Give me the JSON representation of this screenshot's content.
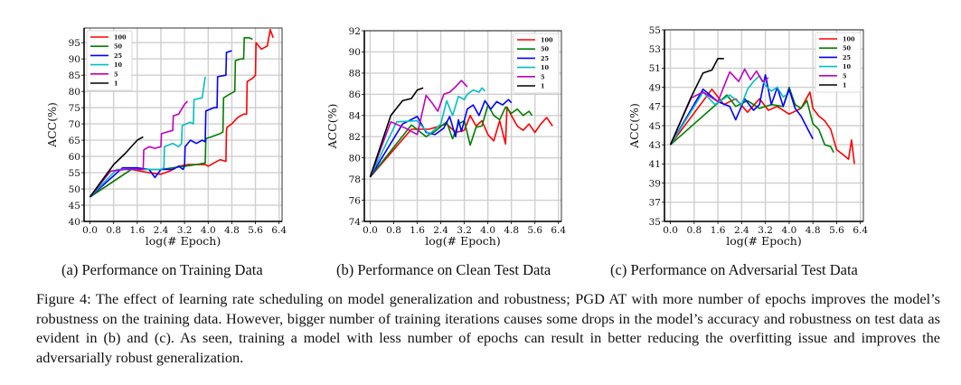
{
  "figure": {
    "subcaptions": [
      "(a) Performance on Training Data",
      "(b) Performance on Clean Test Data",
      "(c) Performance on Adversarial Test Data"
    ],
    "caption": "Figure 4: The effect of learning rate scheduling on model generalization and robustness; PGD AT with more number of epochs improves the model’s robustness on the training data. However, bigger number of training iterations causes some drops in the model’s accuracy and robustness on test data as evident in (b) and (c). As seen, training a model with less number of epochs can result in better reducing the overfitting issue and improves the adversarially robust generalization."
  },
  "series_colors": {
    "100": "#ff0000",
    "50": "#008000",
    "25": "#0000ff",
    "10": "#00bfbf",
    "5": "#bf00bf",
    "1": "#000000"
  },
  "chart_data": [
    {
      "type": "line",
      "id": "a",
      "title": "",
      "xlabel": "log(# Epoch)",
      "ylabel": "ACC(%)",
      "xlim": [
        -0.2,
        6.5
      ],
      "ylim": [
        40,
        99.5
      ],
      "xticks": [
        "0.0",
        "0.8",
        "1.6",
        "2.4",
        "3.2",
        "4.0",
        "4.8",
        "5.6",
        "6.4"
      ],
      "xtick_values": [
        0.0,
        0.8,
        1.6,
        2.4,
        3.2,
        4.0,
        4.8,
        5.6,
        6.4
      ],
      "yticks": [
        "40",
        "45",
        "50",
        "55",
        "60",
        "65",
        "70",
        "75",
        "80",
        "85",
        "90",
        "95"
      ],
      "ytick_values": [
        40,
        45,
        50,
        55,
        60,
        65,
        70,
        75,
        80,
        85,
        90,
        95
      ],
      "grid": true,
      "legend_position": "top-left",
      "series": [
        {
          "name": "100",
          "x": [
            0,
            1.4,
            2.0,
            2.4,
            2.7,
            3.0,
            3.3,
            3.6,
            3.9,
            4.0,
            4.2,
            4.4,
            4.6,
            4.62,
            4.64,
            4.8,
            5.0,
            5.2,
            5.3,
            5.32,
            5.5,
            5.6,
            5.62,
            5.8,
            6.0,
            6.1,
            6.2
          ],
          "y": [
            47.5,
            56,
            55,
            54.5,
            55.5,
            57,
            57.5,
            57.5,
            57.5,
            57,
            58,
            59,
            58.5,
            68,
            69,
            70,
            72,
            73,
            73,
            83,
            84,
            85,
            95,
            93,
            94,
            99,
            96.5
          ]
        },
        {
          "name": "50",
          "x": [
            0,
            1.4,
            2.0,
            2.4,
            2.8,
            3.2,
            3.6,
            3.9,
            3.92,
            4.1,
            4.4,
            4.5,
            4.52,
            4.7,
            4.9,
            4.92,
            5.1,
            5.2,
            5.22,
            5.4,
            5.5
          ],
          "y": [
            47.5,
            56,
            56,
            56,
            56.5,
            57,
            57.5,
            58,
            65.5,
            66,
            67,
            67.5,
            78,
            79,
            80,
            89.5,
            90,
            90,
            96.5,
            96.5,
            96
          ]
        },
        {
          "name": "25",
          "x": [
            0,
            1.1,
            1.6,
            2.0,
            2.2,
            2.4,
            2.8,
            3.0,
            3.15,
            3.2,
            3.22,
            3.4,
            3.6,
            3.8,
            3.9,
            3.92,
            4.2,
            4.3,
            4.32,
            4.6,
            4.62,
            4.8
          ],
          "y": [
            47.5,
            56.5,
            56.5,
            56,
            53.5,
            56,
            56,
            57,
            56,
            57,
            63,
            65,
            64,
            65,
            64.5,
            74,
            75,
            75,
            84.5,
            85,
            92,
            92.5
          ]
        },
        {
          "name": "10",
          "x": [
            0,
            0.9,
            1.6,
            2.0,
            2.4,
            2.5,
            2.52,
            2.8,
            3.0,
            3.1,
            3.12,
            3.4,
            3.5,
            3.52,
            3.8,
            3.9
          ],
          "y": [
            47.5,
            56,
            56,
            56,
            56,
            56.5,
            63,
            64,
            63,
            64,
            69.5,
            70.5,
            70,
            77.5,
            78,
            84.5
          ]
        },
        {
          "name": "5",
          "x": [
            0,
            0.7,
            1.2,
            1.6,
            1.8,
            1.82,
            2.0,
            2.2,
            2.4,
            2.42,
            2.6,
            2.8,
            2.82,
            3.0,
            3.2,
            3.3
          ],
          "y": [
            47.5,
            55.5,
            56,
            56,
            56,
            62,
            63,
            62.5,
            63,
            67,
            67.5,
            68,
            72.5,
            73,
            76,
            77
          ]
        },
        {
          "name": "1",
          "x": [
            0,
            0.4,
            0.8,
            1.2,
            1.6,
            1.8
          ],
          "y": [
            47.5,
            52.5,
            57.5,
            61,
            65,
            66
          ]
        }
      ]
    },
    {
      "type": "line",
      "id": "b",
      "title": "",
      "xlabel": "log(# Epoch)",
      "ylabel": "ACC(%)",
      "xlim": [
        -0.2,
        6.5
      ],
      "ylim": [
        74,
        92
      ],
      "xticks": [
        "0.0",
        "0.8",
        "1.6",
        "2.4",
        "3.2",
        "4.0",
        "4.8",
        "5.6",
        "6.4"
      ],
      "xtick_values": [
        0.0,
        0.8,
        1.6,
        2.4,
        3.2,
        4.0,
        4.8,
        5.6,
        6.4
      ],
      "yticks": [
        "74",
        "76",
        "78",
        "80",
        "82",
        "84",
        "86",
        "88",
        "90",
        "92"
      ],
      "ytick_values": [
        74,
        76,
        78,
        80,
        82,
        84,
        86,
        88,
        90,
        92
      ],
      "grid": true,
      "legend_position": "top-right",
      "series": [
        {
          "name": "100",
          "x": [
            0,
            1.4,
            2.0,
            2.6,
            2.9,
            3.2,
            3.4,
            3.6,
            3.8,
            4.0,
            4.2,
            4.4,
            4.6,
            4.65,
            4.8,
            5.0,
            5.2,
            5.4,
            5.6,
            5.8,
            6.0,
            6.2
          ],
          "y": [
            78.2,
            82.7,
            82.7,
            83.2,
            82.4,
            82.6,
            84,
            83,
            83.5,
            82.2,
            81.6,
            83.5,
            81.3,
            84.8,
            84,
            83,
            82.6,
            83.2,
            82.4,
            83.2,
            83.8,
            83
          ]
        },
        {
          "name": "50",
          "x": [
            0,
            1.4,
            1.9,
            2.2,
            2.6,
            2.8,
            3.0,
            3.2,
            3.4,
            3.6,
            3.8,
            4.0,
            4.2,
            4.4,
            4.6,
            4.8,
            5.0,
            5.2,
            5.4,
            5.5
          ],
          "y": [
            78.2,
            83.1,
            82,
            82.5,
            83.4,
            81.8,
            83.2,
            83.5,
            81.2,
            82.9,
            83,
            85,
            84,
            83.6,
            84.8,
            84.2,
            84.6,
            84,
            84.4,
            84
          ]
        },
        {
          "name": "25",
          "x": [
            0,
            1.1,
            1.6,
            1.9,
            2.2,
            2.5,
            2.7,
            2.9,
            3.0,
            3.1,
            3.3,
            3.5,
            3.7,
            3.9,
            4.1,
            4.3,
            4.5,
            4.7,
            4.8
          ],
          "y": [
            78.2,
            83.2,
            83.9,
            82.4,
            82.2,
            82.8,
            83.9,
            82,
            83.6,
            82.5,
            84.6,
            85,
            84,
            85.4,
            84.6,
            85.3,
            85,
            85.5,
            85.2
          ]
        },
        {
          "name": "10",
          "x": [
            0,
            0.9,
            1.6,
            2.0,
            2.4,
            2.6,
            2.8,
            3.0,
            3.2,
            3.3,
            3.5,
            3.7,
            3.8,
            3.9
          ],
          "y": [
            78.2,
            83.4,
            83.5,
            82.2,
            83.2,
            85.4,
            84,
            85.8,
            85.5,
            86,
            86.4,
            86.2,
            86.6,
            86.3
          ]
        },
        {
          "name": "5",
          "x": [
            0,
            0.7,
            1.2,
            1.6,
            1.9,
            2.1,
            2.3,
            2.5,
            2.7,
            2.9,
            3.1,
            3.3
          ],
          "y": [
            78.2,
            83.4,
            82.8,
            82.2,
            85.9,
            85.2,
            84.4,
            86,
            86.2,
            86.7,
            87.3,
            86.7
          ]
        },
        {
          "name": "1",
          "x": [
            0,
            0.7,
            1.1,
            1.4,
            1.6,
            1.8
          ],
          "y": [
            78.2,
            84,
            85.4,
            85.6,
            86.4,
            86.6
          ]
        }
      ]
    },
    {
      "type": "line",
      "id": "c",
      "title": "",
      "xlabel": "log(# Epoch)",
      "ylabel": "ACC(%)",
      "xlim": [
        -0.2,
        6.5
      ],
      "ylim": [
        35,
        55
      ],
      "xticks": [
        "0.0",
        "0.8",
        "1.6",
        "2.4",
        "3.2",
        "4.0",
        "4.8",
        "5.6",
        "6.4"
      ],
      "xtick_values": [
        0.0,
        0.8,
        1.6,
        2.4,
        3.2,
        4.0,
        4.8,
        5.6,
        6.4
      ],
      "yticks": [
        "35",
        "37",
        "39",
        "41",
        "43",
        "45",
        "47",
        "49",
        "51",
        "53",
        "55"
      ],
      "ytick_values": [
        35,
        37,
        39,
        41,
        43,
        45,
        47,
        49,
        51,
        53,
        55
      ],
      "grid": true,
      "legend_position": "top-right",
      "series": [
        {
          "name": "100",
          "x": [
            0,
            1.4,
            1.8,
            2.2,
            2.6,
            3.0,
            3.3,
            3.6,
            4.0,
            4.4,
            4.7,
            4.8,
            5.0,
            5.2,
            5.4,
            5.6,
            5.8,
            6.0,
            6.1,
            6.2
          ],
          "y": [
            43,
            48.8,
            47.2,
            47.8,
            46.4,
            47.8,
            46.6,
            47,
            46.2,
            46.8,
            48.5,
            46.8,
            46,
            45.5,
            44.6,
            42.5,
            42,
            41.5,
            43.5,
            41
          ]
        },
        {
          "name": "50",
          "x": [
            0,
            1.9,
            2.2,
            2.6,
            3.0,
            3.4,
            3.8,
            4.0,
            4.2,
            4.4,
            4.6,
            4.8,
            5.0,
            5.2,
            5.4,
            5.5
          ],
          "y": [
            43,
            48.2,
            47,
            47.6,
            46.8,
            47.2,
            47,
            49,
            47.2,
            46.8,
            47.6,
            45.2,
            44.6,
            43,
            42.8,
            42.2
          ]
        },
        {
          "name": "25",
          "x": [
            0,
            1.1,
            1.6,
            2.0,
            2.2,
            2.5,
            2.8,
            3.0,
            3.2,
            3.4,
            3.6,
            3.8,
            4.0,
            4.2,
            4.4,
            4.6,
            4.8
          ],
          "y": [
            43,
            48.8,
            47.5,
            47,
            45.6,
            47.8,
            46.6,
            47.2,
            50.3,
            47.2,
            49,
            47,
            48.8,
            46.8,
            46,
            44.8,
            43.6
          ]
        },
        {
          "name": "10",
          "x": [
            0,
            1.1,
            1.5,
            2.0,
            2.4,
            2.6,
            2.8,
            3.0,
            3.2,
            3.4,
            3.6,
            3.8,
            3.9
          ],
          "y": [
            43,
            48.5,
            47.2,
            48.2,
            47.2,
            48.8,
            49.6,
            50.2,
            49.2,
            48.6,
            49,
            48,
            48.2
          ]
        },
        {
          "name": "5",
          "x": [
            0,
            0.7,
            1.1,
            1.6,
            2.0,
            2.3,
            2.5,
            2.7,
            2.9,
            3.1,
            3.3
          ],
          "y": [
            43,
            47.9,
            48.5,
            47.5,
            50.6,
            49.6,
            50.9,
            49.8,
            50.7,
            49.6,
            50
          ]
        },
        {
          "name": "1",
          "x": [
            0,
            0.7,
            1.1,
            1.4,
            1.6,
            1.8
          ],
          "y": [
            43,
            48,
            50.5,
            50.8,
            52,
            52
          ]
        }
      ]
    }
  ]
}
